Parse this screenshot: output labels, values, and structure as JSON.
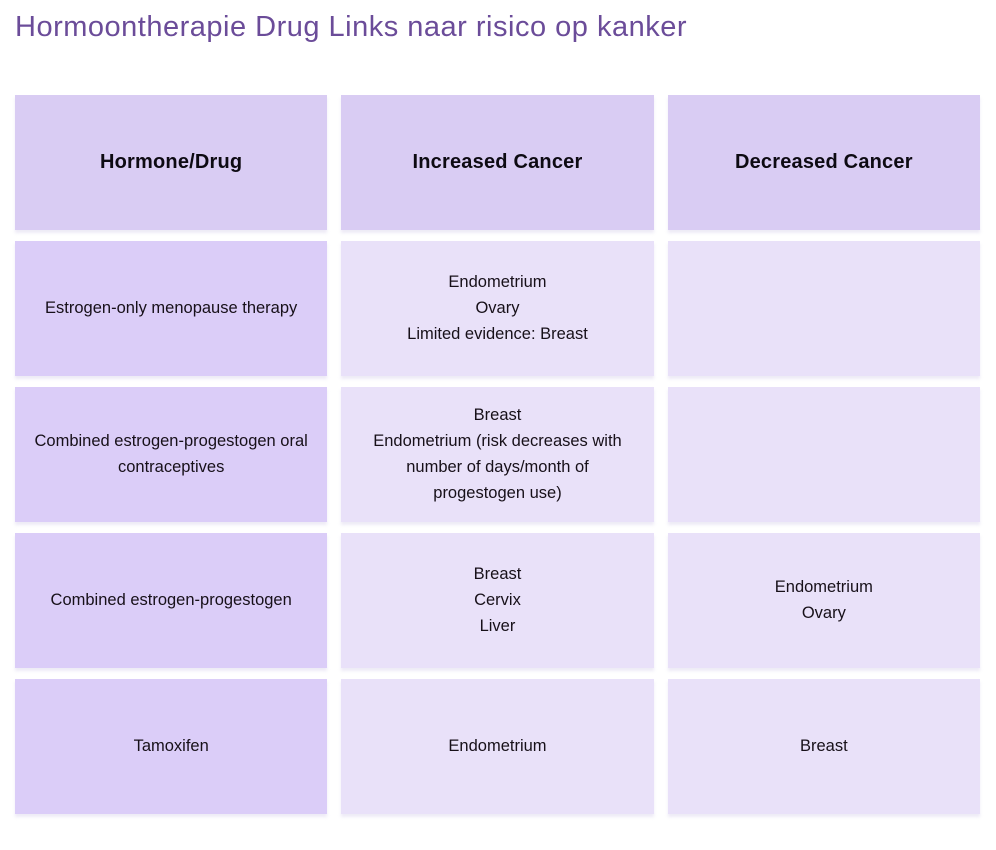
{
  "page_title": "Hormoontherapie Drug Links naar risico op kanker",
  "chart_data": {
    "type": "table",
    "title": "Hormoontherapie Drug Links naar risico op kanker",
    "columns": [
      "Hormone/Drug",
      "Increased Cancer",
      "Decreased Cancer"
    ],
    "rows": [
      [
        "Estrogen-only menopause therapy",
        "Endometrium\nOvary\nLimited evidence: Breast",
        ""
      ],
      [
        "Combined estrogen-progestogen oral contraceptives",
        "Breast\nEndometrium (risk decreases with number of days/month of progestogen use)",
        ""
      ],
      [
        "Combined estrogen-progestogen",
        "Breast\nCervix\nLiver",
        "Endometrium\nOvary"
      ],
      [
        "Tamoxifen",
        "Endometrium",
        "Breast"
      ]
    ],
    "layout": {
      "legend": "none",
      "grid": "off",
      "cell_style": "rounded-rect tiles with gaps, centered text"
    }
  },
  "colors": {
    "page_bg": "#ffffff",
    "title_text": "#6b4c99",
    "header_cell_bg": "#d9ccf3",
    "drug_cell_bg": "#dbcdf8",
    "value_cell_bg": "#e9e1f9",
    "cell_text": "#171019"
  }
}
